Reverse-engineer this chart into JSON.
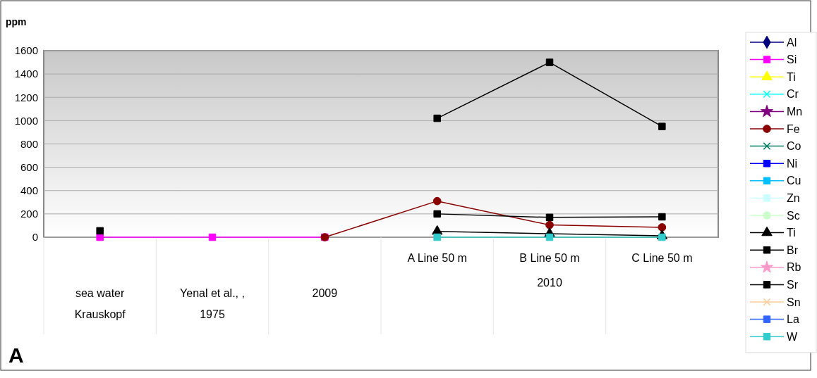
{
  "chart_data": {
    "type": "line",
    "ylabel": "ppm",
    "categories": [
      "sea water Krauskopf",
      "Yenal et al., , 1975",
      "2009",
      "A Line 50 m",
      "B Line 50 m",
      "C Line 50 m"
    ],
    "ylim": [
      0,
      1600
    ],
    "yticks": [
      0,
      200,
      400,
      600,
      800,
      1000,
      1200,
      1400,
      1600
    ],
    "grid": "y",
    "legend": "right",
    "annotations": [
      "2010",
      "A"
    ],
    "series": [
      {
        "name": "Al",
        "color": "#00007f",
        "marker": "diamond",
        "values": [
          null,
          null,
          null,
          null,
          null,
          null
        ]
      },
      {
        "name": "Si",
        "color": "#ff00ff",
        "marker": "square",
        "values": [
          0,
          0,
          0,
          null,
          null,
          null
        ]
      },
      {
        "name": "Ti",
        "color": "#ffff00",
        "marker": "triangle",
        "values": [
          null,
          null,
          null,
          null,
          null,
          null
        ]
      },
      {
        "name": "Cr",
        "color": "#00ffff",
        "marker": "cross",
        "values": [
          null,
          null,
          null,
          null,
          null,
          null
        ]
      },
      {
        "name": "Mn",
        "color": "#800080",
        "marker": "star",
        "values": [
          null,
          null,
          null,
          null,
          null,
          null
        ]
      },
      {
        "name": "Fe",
        "color": "#8b0000",
        "marker": "circle",
        "values": [
          null,
          null,
          0,
          310,
          105,
          85
        ]
      },
      {
        "name": "Co",
        "color": "#008060",
        "marker": "cross",
        "values": [
          null,
          null,
          null,
          null,
          null,
          null
        ]
      },
      {
        "name": "Ni",
        "color": "#0000ff",
        "marker": "square",
        "values": [
          null,
          null,
          null,
          null,
          null,
          null
        ]
      },
      {
        "name": "Cu",
        "color": "#00bfff",
        "marker": "square",
        "values": [
          null,
          null,
          null,
          null,
          null,
          null
        ]
      },
      {
        "name": "Zn",
        "color": "#ccffff",
        "marker": "square",
        "values": [
          null,
          null,
          null,
          null,
          null,
          null
        ]
      },
      {
        "name": "Sc",
        "color": "#ccffcc",
        "marker": "circle",
        "values": [
          null,
          null,
          null,
          null,
          null,
          null
        ]
      },
      {
        "name": "Ti",
        "color": "#000000",
        "marker": "triangle",
        "values": [
          null,
          null,
          null,
          50,
          30,
          12
        ]
      },
      {
        "name": "Br",
        "color": "#000000",
        "marker": "square",
        "values": [
          55,
          null,
          null,
          1020,
          1500,
          950
        ]
      },
      {
        "name": "Rb",
        "color": "#ff99cc",
        "marker": "star",
        "values": [
          null,
          null,
          null,
          null,
          null,
          null
        ]
      },
      {
        "name": "Sr",
        "color": "#000000",
        "marker": "square",
        "values": [
          null,
          null,
          null,
          200,
          170,
          175
        ]
      },
      {
        "name": "Sn",
        "color": "#ffcc99",
        "marker": "cross",
        "values": [
          null,
          null,
          null,
          null,
          null,
          null
        ]
      },
      {
        "name": "La",
        "color": "#3366ff",
        "marker": "square",
        "values": [
          null,
          null,
          null,
          null,
          null,
          null
        ]
      },
      {
        "name": "W",
        "color": "#33cccc",
        "marker": "square",
        "values": [
          null,
          null,
          null,
          0,
          0,
          0
        ]
      }
    ]
  }
}
